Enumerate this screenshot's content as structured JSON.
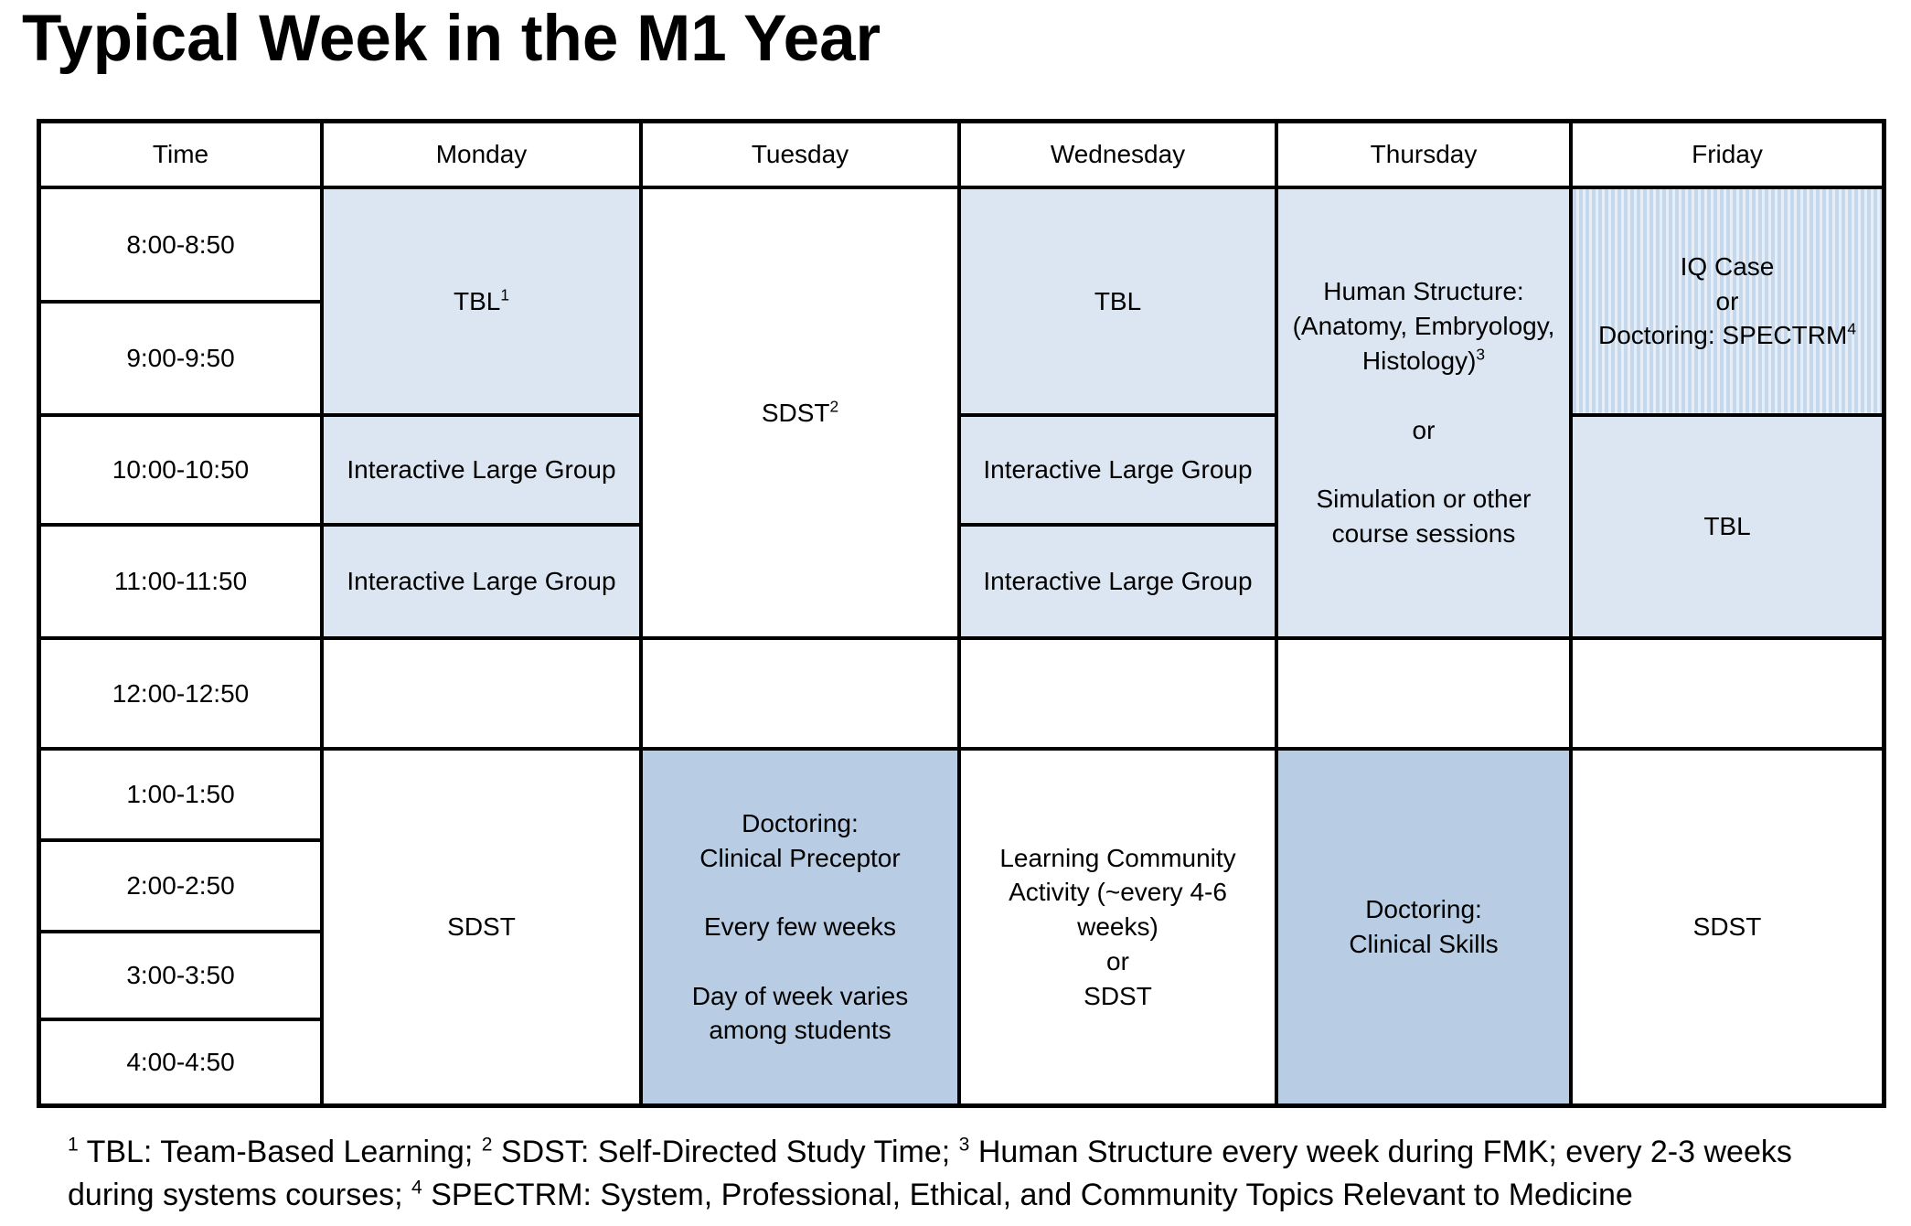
{
  "title": "Typical Week in the M1 Year",
  "colors": {
    "light_blue": "#dce6f2",
    "medium_blue": "#b8cce4",
    "stripe_dark": "#c6d8eb",
    "stripe_light": "#e8eef7",
    "border": "#000000"
  },
  "table": {
    "header": {
      "time": "Time",
      "days": [
        "Monday",
        "Tuesday",
        "Wednesday",
        "Thursday",
        "Friday"
      ]
    },
    "times": [
      "8:00-8:50",
      "9:00-9:50",
      "10:00-10:50",
      "11:00-11:50",
      "12:00-12:50",
      "1:00-1:50",
      "2:00-2:50",
      "3:00-3:50",
      "4:00-4:50"
    ],
    "cells": {
      "monday_tbl": {
        "text": "TBL",
        "sup": "1"
      },
      "monday_ilg_10": "Interactive Large Group",
      "monday_ilg_11": "Interactive Large Group",
      "monday_afternoon": "SDST",
      "tuesday_morning": {
        "text": "SDST",
        "sup": "2"
      },
      "tuesday_afternoon": "Doctoring:\nClinical Preceptor\n\nEvery few weeks\n\nDay of week varies\namong students",
      "wednesday_tbl": "TBL",
      "wednesday_ilg_10": "Interactive Large Group",
      "wednesday_ilg_11": "Interactive Large Group",
      "wednesday_afternoon": "Learning Community\nActivity (~every 4-6\nweeks)\nor\nSDST",
      "thursday_morning": {
        "block1": "Human Structure:\n(Anatomy, Embryology,\nHistology)",
        "block1_sup": "3",
        "or": "or",
        "block2": "Simulation or other\ncourse sessions"
      },
      "thursday_afternoon": "Doctoring:\nClinical Skills",
      "friday_morning": {
        "text": "IQ Case\nor\nDoctoring: SPECTRM",
        "sup": "4"
      },
      "friday_tbl": "TBL",
      "friday_afternoon": "SDST"
    }
  },
  "footnote": {
    "line1": {
      "sup1": "1",
      "p1": " TBL: Team-Based Learning; ",
      "sup2": "2",
      "p2": " SDST: Self-Directed Study Time; ",
      "sup3": "3",
      "p3": " Human Structure every week during FMK; every 2-3 weeks"
    },
    "line2": {
      "p1": "during systems courses; ",
      "sup4": "4",
      "p2": " SPECTRM: System, Professional, Ethical, and Community Topics Relevant to Medicine"
    }
  }
}
